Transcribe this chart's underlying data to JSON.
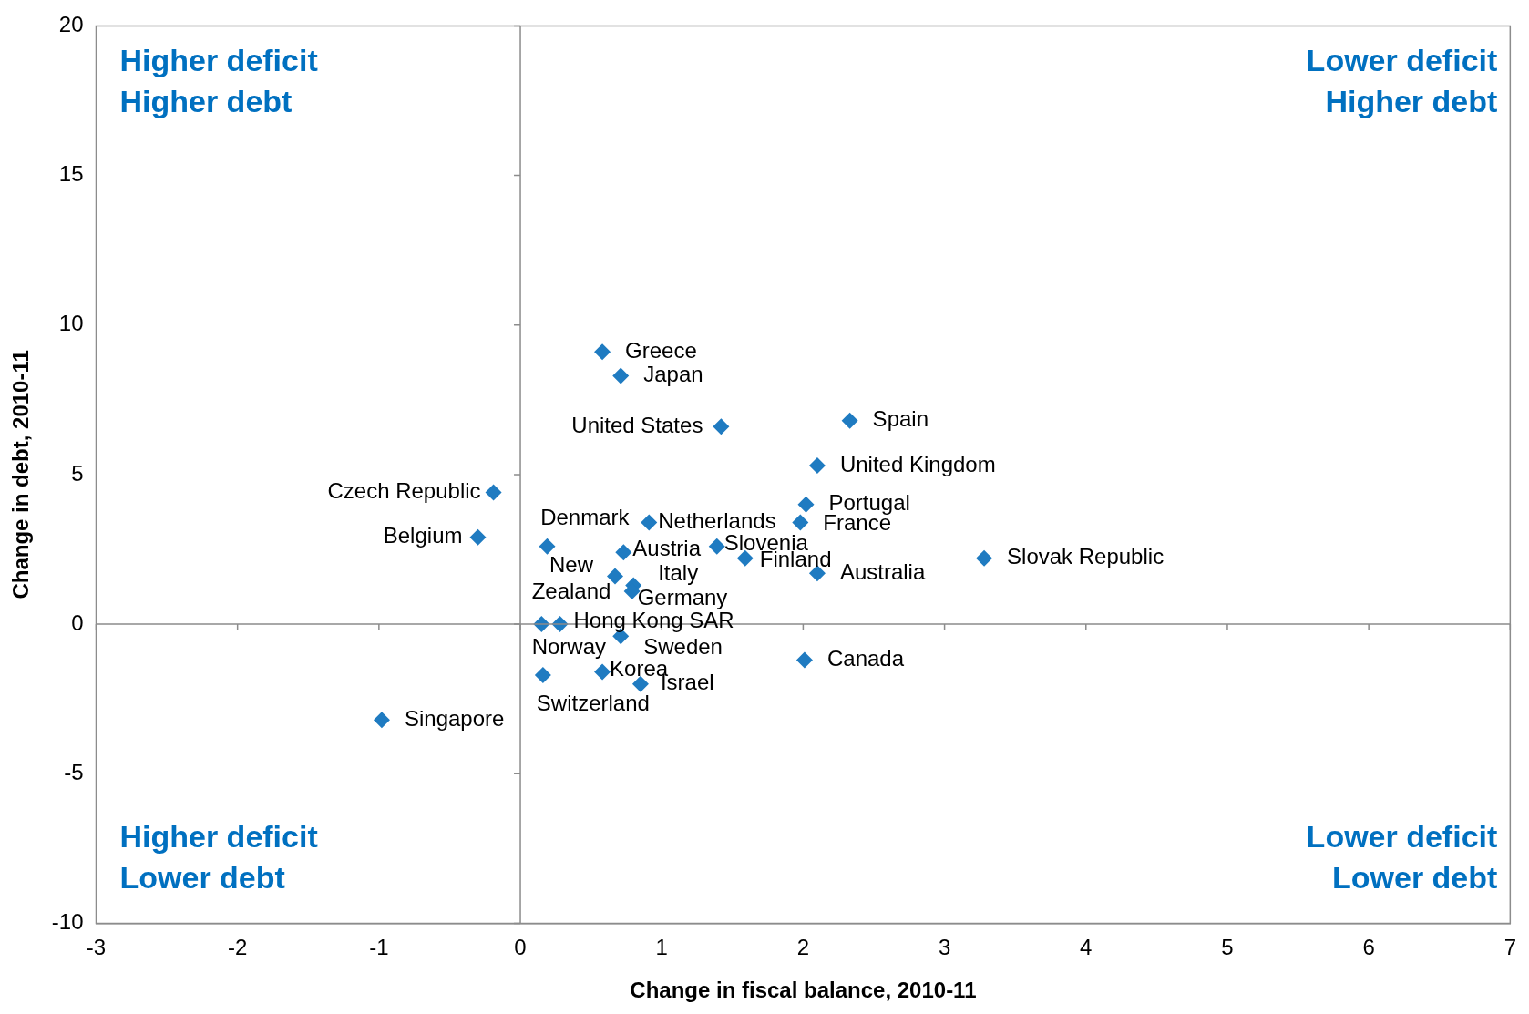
{
  "chart_data": {
    "type": "scatter",
    "xlabel": "Change in fiscal balance, 2010-11",
    "ylabel": "Change in debt, 2010-11",
    "x": [
      0.58,
      0.71,
      1.42,
      2.33,
      2.1,
      -0.19,
      2.02,
      -0.3,
      0.19,
      0.91,
      1.98,
      0.73,
      1.39,
      1.59,
      3.28,
      2.1,
      0.67,
      0.8,
      0.79,
      0.28,
      0.15,
      0.71,
      2.01,
      0.16,
      0.58,
      0.85,
      -0.98
    ],
    "series": [
      {
        "color": "#1f7bc1",
        "values": [
          9.1,
          8.3,
          6.6,
          6.8,
          5.3,
          4.4,
          4.0,
          2.9,
          2.6,
          3.4,
          3.4,
          2.4,
          2.6,
          2.2,
          2.2,
          1.7,
          1.6,
          1.3,
          1.1,
          0,
          0,
          -0.4,
          -1.2,
          -1.7,
          -1.6,
          -2.0,
          -3.2
        ]
      }
    ],
    "xlim": [
      -3,
      7
    ],
    "xticks": [
      -3,
      -2,
      -1,
      0,
      1,
      2,
      3,
      4,
      5,
      6,
      7
    ],
    "ylim": [
      -10,
      20
    ],
    "yticks": [
      -10,
      -5,
      0,
      5,
      10,
      15,
      20
    ],
    "marker": "diamond",
    "legend": false,
    "annotations": [
      "Higher deficit\nHigher debt",
      "Lower deficit\nHigher debt",
      "Higher deficit\nLower debt",
      "Lower deficit\nLower debt",
      {
        "text": "Greece",
        "x": 0.58,
        "y": 9.1
      },
      {
        "text": "Japan",
        "x": 0.71,
        "y": 8.3
      },
      {
        "text": "United States",
        "x": 1.42,
        "y": 6.6
      },
      {
        "text": "Spain",
        "x": 2.33,
        "y": 6.8
      },
      {
        "text": "United Kingdom",
        "x": 2.1,
        "y": 5.3
      },
      {
        "text": "Czech Republic",
        "x": -0.19,
        "y": 4.4
      },
      {
        "text": "Portugal",
        "x": 2.02,
        "y": 4.0
      },
      {
        "text": "Belgium",
        "x": -0.3,
        "y": 2.9
      },
      {
        "text": "Denmark",
        "x": 0.19,
        "y": 2.6
      },
      {
        "text": "Netherlands",
        "x": 0.91,
        "y": 3.4
      },
      {
        "text": "France",
        "x": 1.98,
        "y": 3.4
      },
      {
        "text": "Austria",
        "x": 0.73,
        "y": 2.4
      },
      {
        "text": "Slovenia",
        "x": 1.39,
        "y": 2.6
      },
      {
        "text": "Finland",
        "x": 1.59,
        "y": 2.2
      },
      {
        "text": "Slovak Republic",
        "x": 3.28,
        "y": 2.2
      },
      {
        "text": "Australia",
        "x": 2.1,
        "y": 1.7
      },
      {
        "text": "New\nZealand",
        "x": 0.67,
        "y": 1.6
      },
      {
        "text": "Italy",
        "x": 0.8,
        "y": 1.3
      },
      {
        "text": "Germany",
        "x": 0.79,
        "y": 1.1
      },
      {
        "text": "Hong Kong SAR",
        "x": 0.28,
        "y": 0
      },
      {
        "text": "Norway",
        "x": 0.15,
        "y": 0
      },
      {
        "text": "Sweden",
        "x": 0.71,
        "y": -0.4
      },
      {
        "text": "Canada",
        "x": 2.01,
        "y": -1.2
      },
      {
        "text": "Switzerland",
        "x": 0.16,
        "y": -1.7
      },
      {
        "text": "Korea",
        "x": 0.58,
        "y": -1.6
      },
      {
        "text": "Israel",
        "x": 0.85,
        "y": -2.0
      },
      {
        "text": "Singapore",
        "x": -0.98,
        "y": -3.2
      }
    ]
  }
}
